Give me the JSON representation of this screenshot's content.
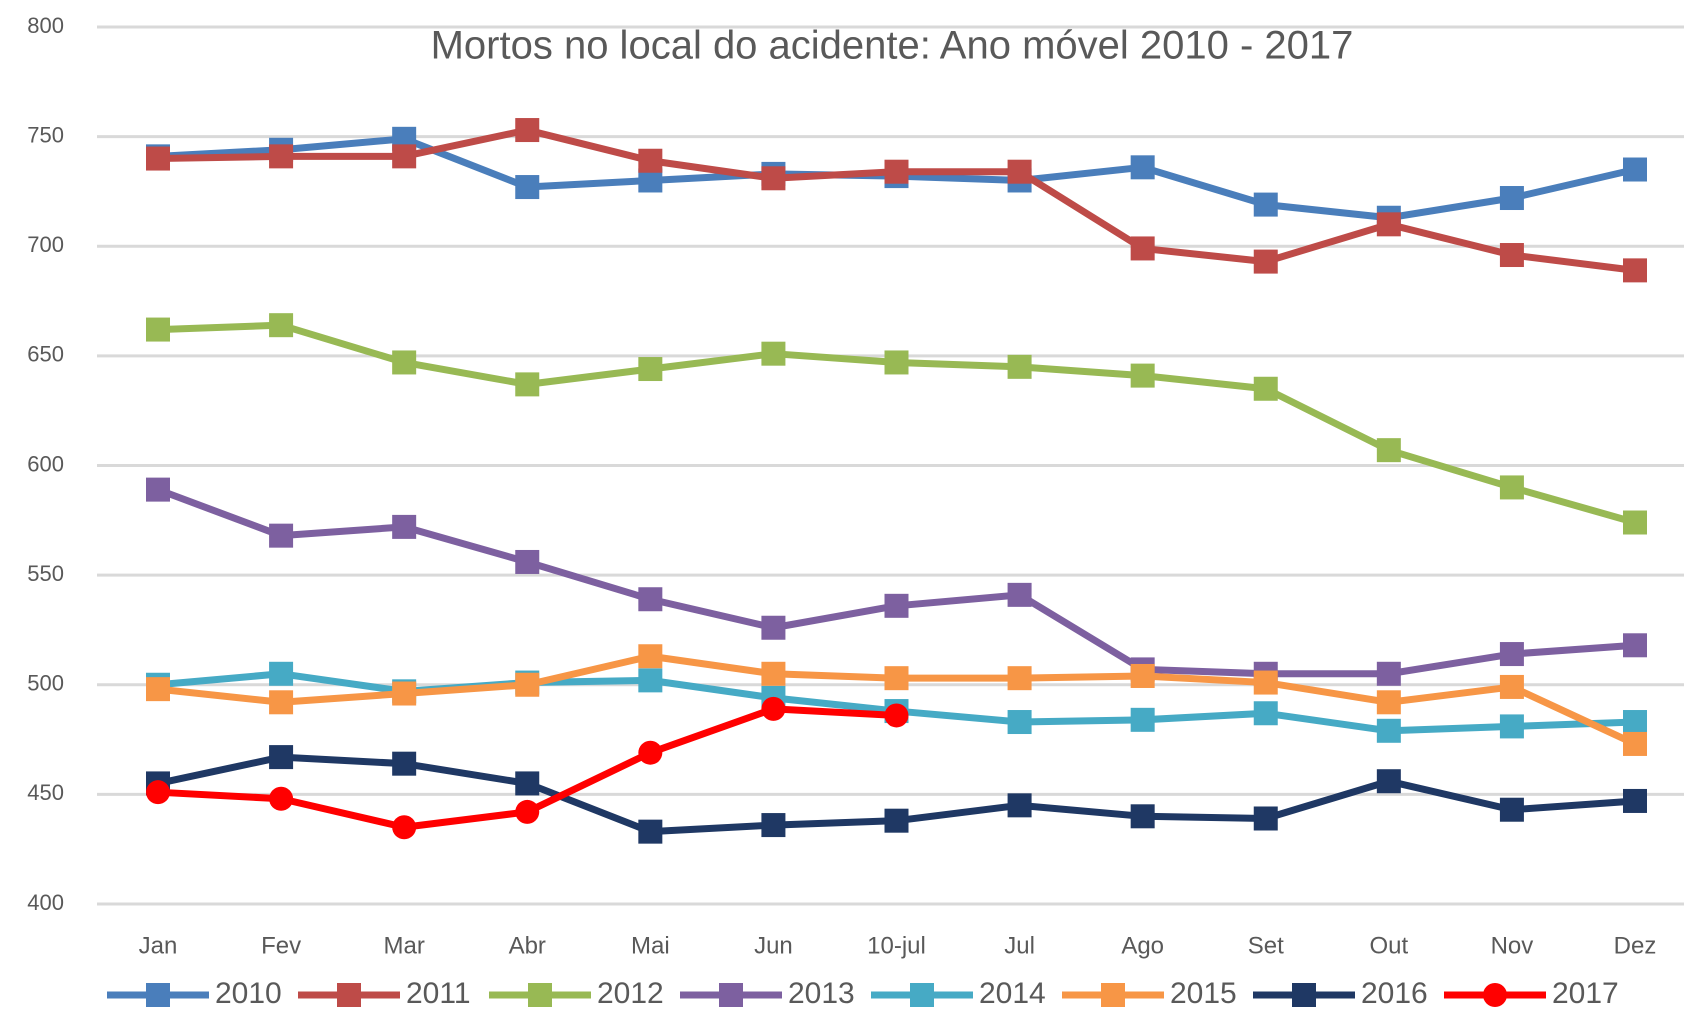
{
  "chart_data": {
    "type": "line",
    "title": "Mortos no local do acidente: Ano móvel 2010 - 2017",
    "categories": [
      "Jan",
      "Fev",
      "Mar",
      "Abr",
      "Mai",
      "Jun",
      "10-jul",
      "Jul",
      "Ago",
      "Set",
      "Out",
      "Nov",
      "Dez"
    ],
    "ylim": [
      400,
      800
    ],
    "yticks": [
      400,
      450,
      500,
      550,
      600,
      650,
      700,
      750,
      800
    ],
    "grid": true,
    "legend": "bottom",
    "series": [
      {
        "name": "2010",
        "color": "#4a7ebb",
        "marker": "square",
        "values": [
          741,
          744,
          749,
          727,
          730,
          733,
          732,
          730,
          736,
          719,
          713,
          722,
          735
        ]
      },
      {
        "name": "2011",
        "color": "#be4b48",
        "marker": "square",
        "values": [
          740,
          741,
          741,
          753,
          739,
          731,
          734,
          734,
          699,
          693,
          710,
          696,
          689
        ]
      },
      {
        "name": "2012",
        "color": "#98b954",
        "marker": "square",
        "values": [
          662,
          664,
          647,
          637,
          644,
          651,
          647,
          645,
          641,
          635,
          607,
          590,
          574
        ]
      },
      {
        "name": "2013",
        "color": "#7d60a0",
        "marker": "square",
        "values": [
          589,
          568,
          572,
          556,
          539,
          526,
          536,
          541,
          507,
          505,
          505,
          514,
          518
        ]
      },
      {
        "name": "2014",
        "color": "#46aac5",
        "marker": "square",
        "values": [
          500,
          505,
          497,
          501,
          502,
          494,
          488,
          483,
          484,
          487,
          479,
          481,
          483
        ]
      },
      {
        "name": "2015",
        "color": "#f79646",
        "marker": "square",
        "values": [
          498,
          492,
          496,
          500,
          513,
          505,
          503,
          503,
          504,
          501,
          492,
          499,
          473
        ]
      },
      {
        "name": "2016",
        "color": "#1f3864",
        "marker": "square",
        "values": [
          455,
          467,
          464,
          455,
          433,
          436,
          438,
          445,
          440,
          439,
          456,
          443,
          447
        ]
      },
      {
        "name": "2017",
        "color": "#ff0000",
        "marker": "circle",
        "values": [
          451,
          448,
          435,
          442,
          469,
          489,
          486,
          null,
          null,
          null,
          null,
          null,
          null
        ]
      }
    ]
  }
}
